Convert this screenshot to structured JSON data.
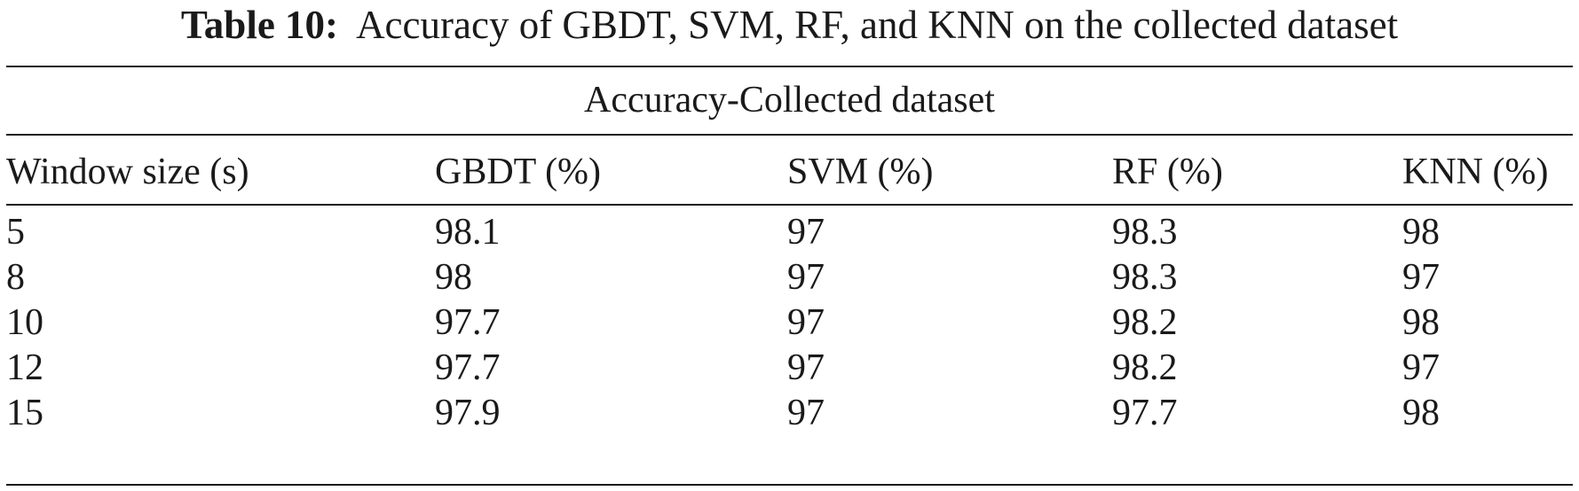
{
  "caption": {
    "label": "Table 10:",
    "text": "Accuracy of GBDT, SVM, RF, and KNN on the collected dataset"
  },
  "table": {
    "group_header": "Accuracy-Collected dataset",
    "columns": [
      "Window size (s)",
      "GBDT (%)",
      "SVM (%)",
      "RF (%)",
      "KNN (%)"
    ],
    "rows": [
      [
        "5",
        "98.1",
        "97",
        "98.3",
        "98"
      ],
      [
        "8",
        "98",
        "97",
        "98.3",
        "97"
      ],
      [
        "10",
        "97.7",
        "97",
        "98.2",
        "98"
      ],
      [
        "12",
        "97.7",
        "97",
        "98.2",
        "97"
      ],
      [
        "15",
        "97.9",
        "97",
        "97.7",
        "98"
      ]
    ]
  }
}
